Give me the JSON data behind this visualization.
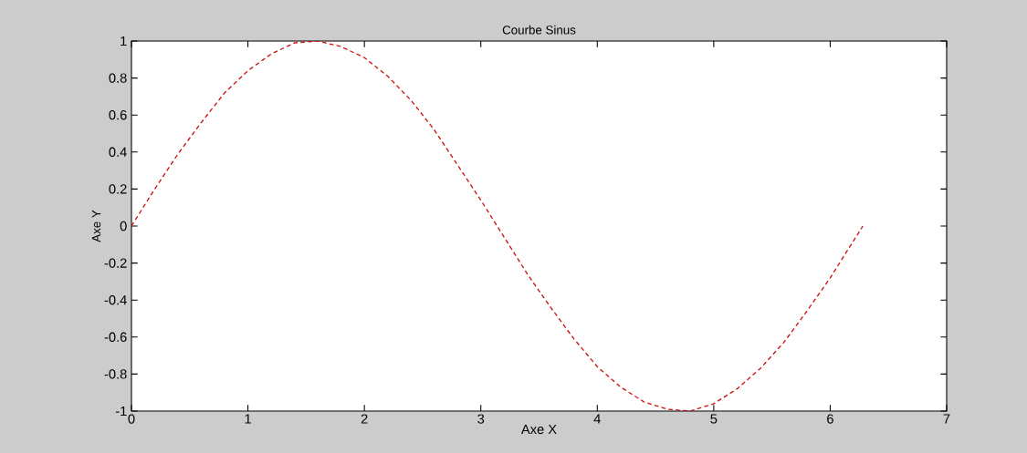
{
  "chart_data": {
    "type": "line",
    "title": "Courbe Sinus",
    "xlabel": "Axe X",
    "ylabel": "Axe Y",
    "x": [
      0,
      0.2,
      0.4,
      0.6,
      0.8,
      1.0,
      1.2,
      1.4,
      1.6,
      1.8,
      2.0,
      2.2,
      2.4,
      2.6,
      2.8,
      3.0,
      3.2,
      3.4,
      3.6,
      3.8,
      4.0,
      4.2,
      4.4,
      4.6,
      4.8,
      5.0,
      5.2,
      5.4,
      5.6,
      5.8,
      6.0,
      6.2,
      6.28
    ],
    "values": [
      0,
      0.2,
      0.39,
      0.56,
      0.72,
      0.84,
      0.93,
      0.99,
      1.0,
      0.97,
      0.91,
      0.81,
      0.68,
      0.52,
      0.33,
      0.14,
      -0.06,
      -0.26,
      -0.44,
      -0.61,
      -0.76,
      -0.87,
      -0.95,
      -0.99,
      -1.0,
      -0.96,
      -0.88,
      -0.77,
      -0.63,
      -0.46,
      -0.28,
      -0.08,
      0
    ],
    "color": "#cc1111",
    "line_style": "dashed",
    "xlim": [
      0,
      7
    ],
    "ylim": [
      -1,
      1
    ],
    "xticks": [
      0,
      1,
      2,
      3,
      4,
      5,
      6,
      7
    ],
    "yticks": [
      -1,
      -0.8,
      -0.6,
      -0.4,
      -0.2,
      0,
      0.2,
      0.4,
      0.6,
      0.8,
      1
    ]
  }
}
